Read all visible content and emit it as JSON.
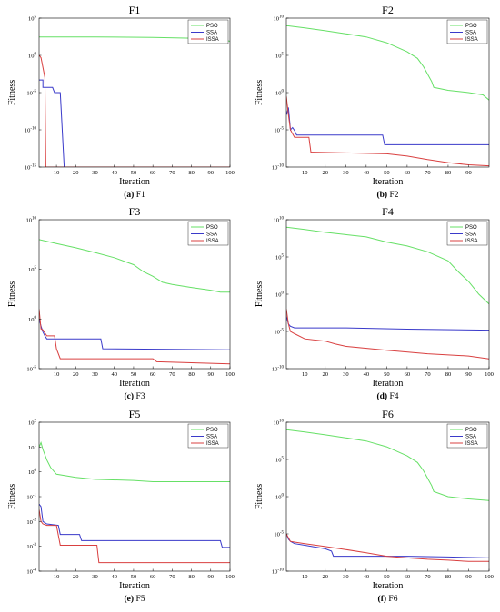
{
  "colors": {
    "PSO": "#66e066",
    "SSA": "#3a3aca",
    "ISSA": "#d94040"
  },
  "legend_labels": [
    "PSO",
    "SSA",
    "ISSA"
  ],
  "chart_data": [
    {
      "type": "line",
      "title": "F1",
      "xlabel": "Iteration",
      "ylabel": "Fitness",
      "caption_tag": "(a)",
      "caption_text": " F1",
      "yscale": "log",
      "ylim": [
        1e-15,
        100000.0
      ],
      "xlim": [
        1,
        100
      ],
      "xticks": [
        10,
        20,
        30,
        40,
        50,
        60,
        70,
        80,
        90,
        100
      ],
      "yticks": [
        {
          "v": 100000.0,
          "m": "10",
          "e": "5"
        },
        {
          "v": 1,
          "m": "10",
          "e": "0"
        },
        {
          "v": 1e-05,
          "m": "10",
          "e": "-5"
        },
        {
          "v": 1e-10,
          "m": "10",
          "e": "-10"
        },
        {
          "v": 1e-15,
          "m": "10",
          "e": "-15"
        }
      ],
      "legend": "top-right",
      "grid": false,
      "series": [
        {
          "name": "PSO",
          "x": [
            1,
            30,
            60,
            80,
            95,
            100
          ],
          "y": [
            300.0,
            300.0,
            260.0,
            200.0,
            130.0,
            80.0
          ]
        },
        {
          "name": "SSA",
          "x": [
            1,
            3,
            3,
            8,
            9,
            12,
            14,
            15
          ],
          "y": [
            0.0005,
            0.0005,
            5e-05,
            5e-05,
            1e-05,
            1e-05,
            1e-15,
            1e-15
          ]
        },
        {
          "name": "ISSA",
          "x": [
            1,
            2,
            4,
            4.5,
            5,
            100
          ],
          "y": [
            1,
            0.5,
            0.001,
            1e-15,
            1e-15,
            1e-15
          ]
        }
      ]
    },
    {
      "type": "line",
      "title": "F2",
      "xlabel": "Iteration",
      "ylabel": "Fitness",
      "caption_tag": "(b)",
      "caption_text": " F2",
      "yscale": "log",
      "ylim": [
        1e-10,
        10000000000.0
      ],
      "xlim": [
        1,
        100
      ],
      "xticks": [
        10,
        20,
        30,
        40,
        50,
        60,
        70,
        80,
        90
      ],
      "yticks": [
        {
          "v": 10000000000.0,
          "m": "10",
          "e": "10"
        },
        {
          "v": 100000.0,
          "m": "10",
          "e": "5"
        },
        {
          "v": 1,
          "m": "10",
          "e": "0"
        },
        {
          "v": 1e-05,
          "m": "10",
          "e": "-5"
        },
        {
          "v": 1e-10,
          "m": "10",
          "e": "-10"
        }
      ],
      "legend": "top-right",
      "grid": false,
      "series": [
        {
          "name": "PSO",
          "x": [
            1,
            10,
            20,
            30,
            40,
            50,
            60,
            65,
            68,
            70,
            72,
            73,
            80,
            90,
            97,
            100
          ],
          "y": [
            1000000000.0,
            500000000.0,
            200000000.0,
            80000000.0,
            30000000.0,
            5000000.0,
            300000.0,
            40000.0,
            3000.0,
            300.0,
            30.0,
            5,
            2,
            1,
            0.5,
            0.1
          ]
        },
        {
          "name": "SSA",
          "x": [
            1,
            2,
            3,
            4,
            5,
            6,
            48,
            49,
            100
          ],
          "y": [
            0.001,
            0.01,
            1e-05,
            2e-05,
            8e-06,
            2e-06,
            2e-06,
            1e-07,
            1e-07
          ]
        },
        {
          "name": "ISSA",
          "x": [
            1,
            2,
            3,
            4,
            5,
            8,
            12,
            13,
            14,
            30,
            50,
            60,
            70,
            80,
            90,
            100
          ],
          "y": [
            0.3,
            0.001,
            1e-05,
            3e-06,
            1e-06,
            1e-06,
            1e-06,
            1e-08,
            1e-08,
            8e-09,
            6e-09,
            3e-09,
            1e-09,
            4e-10,
            2e-10,
            1.5e-10
          ]
        }
      ]
    },
    {
      "type": "line",
      "title": "F3",
      "xlabel": "Iteration",
      "ylabel": "Fitness",
      "caption_tag": "(c)",
      "caption_text": " F3",
      "yscale": "log",
      "ylim": [
        1e-05,
        10000000000.0
      ],
      "xlim": [
        1,
        100
      ],
      "xticks": [
        10,
        20,
        30,
        40,
        50,
        60,
        70,
        80,
        90,
        100
      ],
      "yticks": [
        {
          "v": 10000000000.0,
          "m": "10",
          "e": "10"
        },
        {
          "v": 100000.0,
          "m": "10",
          "e": "5"
        },
        {
          "v": 1,
          "m": "10",
          "e": "0"
        },
        {
          "v": 1e-05,
          "m": "10",
          "e": "-5"
        }
      ],
      "legend": "top-right",
      "grid": false,
      "series": [
        {
          "name": "PSO",
          "x": [
            1,
            10,
            20,
            30,
            40,
            50,
            55,
            60,
            65,
            70,
            80,
            90,
            95,
            100
          ],
          "y": [
            100000000.0,
            40000000.0,
            15000000.0,
            5000000.0,
            1500000.0,
            300000.0,
            60000.0,
            20000.0,
            5000.0,
            3000.0,
            1500.0,
            800.0,
            500.0,
            500.0
          ]
        },
        {
          "name": "SSA",
          "x": [
            1,
            2,
            3,
            4,
            5,
            33,
            34,
            100
          ],
          "y": [
            1,
            0.2,
            0.05,
            0.02,
            0.01,
            0.01,
            0.001,
            0.0008
          ]
        },
        {
          "name": "ISSA",
          "x": [
            1,
            2,
            3,
            5,
            9,
            10,
            12,
            25,
            60,
            62,
            100
          ],
          "y": [
            10,
            0.1,
            0.08,
            0.02,
            0.02,
            0.001,
            0.0001,
            0.0001,
            0.0001,
            5e-05,
            3e-05
          ]
        }
      ]
    },
    {
      "type": "line",
      "title": "F4",
      "xlabel": "Iteration",
      "ylabel": "Fitness",
      "caption_tag": "(d)",
      "caption_text": " F4",
      "yscale": "log",
      "ylim": [
        1e-10,
        10000000000.0
      ],
      "xlim": [
        1,
        100
      ],
      "xticks": [
        10,
        20,
        30,
        40,
        50,
        60,
        70,
        80,
        90,
        100
      ],
      "yticks": [
        {
          "v": 10000000000.0,
          "m": "10",
          "e": "10"
        },
        {
          "v": 100000.0,
          "m": "10",
          "e": "5"
        },
        {
          "v": 1,
          "m": "10",
          "e": "0"
        },
        {
          "v": 1e-05,
          "m": "10",
          "e": "-5"
        },
        {
          "v": 1e-10,
          "m": "10",
          "e": "-10"
        }
      ],
      "legend": "top-right",
      "grid": false,
      "series": [
        {
          "name": "PSO",
          "x": [
            1,
            10,
            20,
            30,
            40,
            50,
            60,
            70,
            80,
            85,
            90,
            93,
            95,
            100
          ],
          "y": [
            1000000000.0,
            500000000.0,
            200000000.0,
            100000000.0,
            50000000.0,
            10000000.0,
            3000000.0,
            500000.0,
            30000.0,
            1000.0,
            50.0,
            5,
            1,
            0.05
          ]
        },
        {
          "name": "SSA",
          "x": [
            1,
            2,
            3,
            5,
            30,
            60,
            100
          ],
          "y": [
            0.001,
            0.0001,
            5e-05,
            3e-05,
            3e-05,
            2e-05,
            1.5e-05
          ]
        },
        {
          "name": "ISSA",
          "x": [
            1,
            2,
            3,
            5,
            10,
            20,
            25,
            30,
            50,
            70,
            90,
            100
          ],
          "y": [
            0.01,
            0.0001,
            1e-05,
            5e-06,
            1e-06,
            5e-07,
            2e-07,
            1e-07,
            3e-08,
            1e-08,
            5e-09,
            2e-09
          ]
        }
      ]
    },
    {
      "type": "line",
      "title": "F5",
      "xlabel": "Iteration",
      "ylabel": "Fitness",
      "caption_tag": "(e)",
      "caption_text": " F5",
      "yscale": "log",
      "ylim": [
        0.0001,
        100.0
      ],
      "xlim": [
        1,
        100
      ],
      "xticks": [
        10,
        20,
        30,
        40,
        50,
        60,
        70,
        80,
        90,
        100
      ],
      "yticks": [
        {
          "v": 100.0,
          "m": "10",
          "e": "2"
        },
        {
          "v": 10.0,
          "m": "10",
          "e": "1"
        },
        {
          "v": 1,
          "m": "10",
          "e": "0"
        },
        {
          "v": 0.1,
          "m": "10",
          "e": "-1"
        },
        {
          "v": 0.01,
          "m": "10",
          "e": "-2"
        },
        {
          "v": 0.001,
          "m": "10",
          "e": "-3"
        },
        {
          "v": 0.0001,
          "m": "10",
          "e": "-4"
        }
      ],
      "legend": "top-right",
      "grid": false,
      "series": [
        {
          "name": "PSO",
          "x": [
            1,
            2,
            3,
            5,
            7,
            10,
            20,
            30,
            50,
            60,
            100
          ],
          "y": [
            10,
            15,
            8,
            3,
            1.5,
            0.8,
            0.6,
            0.5,
            0.45,
            0.4,
            0.4
          ]
        },
        {
          "name": "SSA",
          "x": [
            1,
            2,
            3,
            5,
            11,
            12,
            22,
            23,
            95,
            96,
            100
          ],
          "y": [
            0.05,
            0.04,
            0.01,
            0.008,
            0.007,
            0.003,
            0.003,
            0.0017,
            0.0017,
            0.0009,
            0.0009
          ]
        },
        {
          "name": "ISSA",
          "x": [
            1,
            2,
            3,
            5,
            10,
            12,
            31,
            32,
            100
          ],
          "y": [
            0.03,
            0.01,
            0.008,
            0.007,
            0.007,
            0.0011,
            0.0011,
            0.00022,
            0.00022
          ]
        }
      ]
    },
    {
      "type": "line",
      "title": "F6",
      "xlabel": "Iteration",
      "ylabel": "Fitness",
      "caption_tag": "(f)",
      "caption_text": " F6",
      "yscale": "log",
      "ylim": [
        1e-10,
        10000000000.0
      ],
      "xlim": [
        1,
        100
      ],
      "xticks": [
        10,
        20,
        30,
        40,
        50,
        60,
        70,
        80,
        90,
        100
      ],
      "yticks": [
        {
          "v": 10000000000.0,
          "m": "10",
          "e": "10"
        },
        {
          "v": 100000.0,
          "m": "10",
          "e": "5"
        },
        {
          "v": 1,
          "m": "10",
          "e": "0"
        },
        {
          "v": 1e-05,
          "m": "10",
          "e": "-5"
        },
        {
          "v": 1e-10,
          "m": "10",
          "e": "-10"
        }
      ],
      "legend": "top-right",
      "grid": false,
      "series": [
        {
          "name": "PSO",
          "x": [
            1,
            10,
            20,
            30,
            40,
            50,
            60,
            65,
            68,
            70,
            72,
            73,
            80,
            90,
            100
          ],
          "y": [
            1000000000.0,
            500000000.0,
            200000000.0,
            80000000.0,
            30000000.0,
            5000000.0,
            300000.0,
            40000.0,
            3000.0,
            300.0,
            30.0,
            5,
            1,
            0.5,
            0.3
          ]
        },
        {
          "name": "SSA",
          "x": [
            1,
            2,
            3,
            5,
            10,
            20,
            23,
            24,
            60,
            80,
            100
          ],
          "y": [
            1e-05,
            2e-06,
            1e-06,
            5e-07,
            3e-07,
            1e-07,
            5e-08,
            1e-08,
            1e-08,
            8e-09,
            6e-09
          ]
        },
        {
          "name": "ISSA",
          "x": [
            1,
            2,
            3,
            5,
            10,
            20,
            30,
            40,
            50,
            60,
            70,
            80,
            90,
            100
          ],
          "y": [
            1e-05,
            3e-06,
            1e-06,
            8e-07,
            5e-07,
            2e-07,
            8e-08,
            3e-08,
            1e-08,
            6e-09,
            4e-09,
            3e-09,
            2e-09,
            2e-09
          ]
        }
      ]
    }
  ]
}
